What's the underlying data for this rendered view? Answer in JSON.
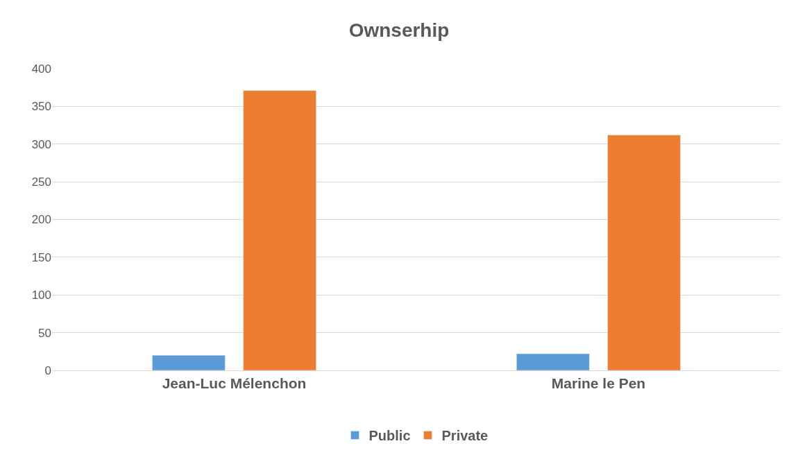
{
  "chart_data": {
    "type": "bar",
    "title": "Ownserhip",
    "categories": [
      "Jean-Luc Mélenchon",
      "Marine le Pen"
    ],
    "series": [
      {
        "name": "Public",
        "color": "#5b9bd5",
        "values": [
          20,
          22
        ]
      },
      {
        "name": "Private",
        "color": "#ed7d31",
        "values": [
          371,
          312
        ]
      }
    ],
    "ylim": [
      0,
      400
    ],
    "yticks": [
      0,
      50,
      100,
      150,
      200,
      250,
      300,
      350,
      400
    ],
    "grid": "y",
    "legend": "bottom"
  }
}
